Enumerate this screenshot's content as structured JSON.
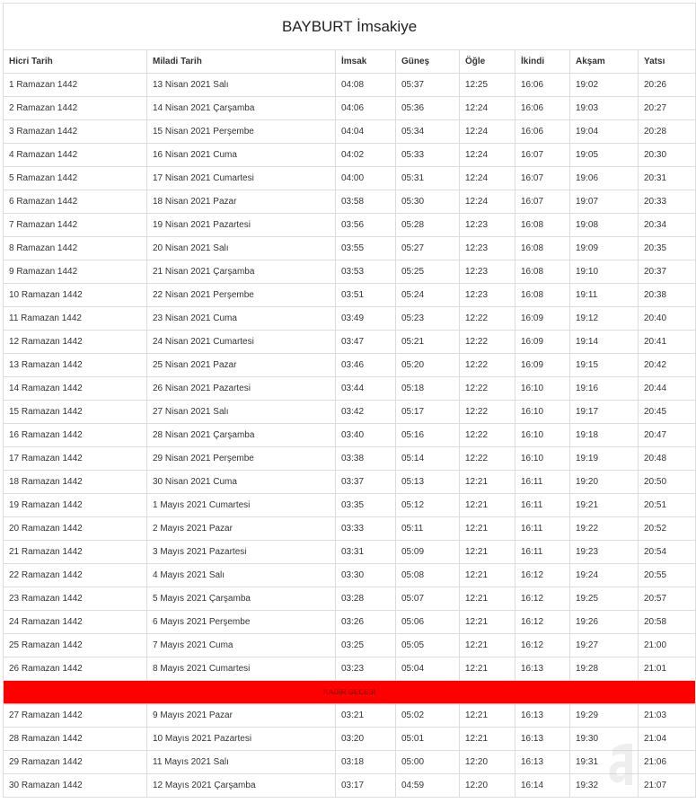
{
  "title": "BAYBURT İmsakiye",
  "headers": [
    "Hicri Tarih",
    "Miladi Tarih",
    "İmsak",
    "Güneş",
    "Öğle",
    "İkindi",
    "Akşam",
    "Yatsı"
  ],
  "rows_before": [
    [
      "1 Ramazan 1442",
      "13 Nisan 2021 Salı",
      "04:08",
      "05:37",
      "12:25",
      "16:06",
      "19:02",
      "20:26"
    ],
    [
      "2 Ramazan 1442",
      "14 Nisan 2021 Çarşamba",
      "04:06",
      "05:36",
      "12:24",
      "16:06",
      "19:03",
      "20:27"
    ],
    [
      "3 Ramazan 1442",
      "15 Nisan 2021 Perşembe",
      "04:04",
      "05:34",
      "12:24",
      "16:06",
      "19:04",
      "20:28"
    ],
    [
      "4 Ramazan 1442",
      "16 Nisan 2021 Cuma",
      "04:02",
      "05:33",
      "12:24",
      "16:07",
      "19:05",
      "20:30"
    ],
    [
      "5 Ramazan 1442",
      "17 Nisan 2021 Cumartesi",
      "04:00",
      "05:31",
      "12:24",
      "16:07",
      "19:06",
      "20:31"
    ],
    [
      "6 Ramazan 1442",
      "18 Nisan 2021 Pazar",
      "03:58",
      "05:30",
      "12:24",
      "16:07",
      "19:07",
      "20:33"
    ],
    [
      "7 Ramazan 1442",
      "19 Nisan 2021 Pazartesi",
      "03:56",
      "05:28",
      "12:23",
      "16:08",
      "19:08",
      "20:34"
    ],
    [
      "8 Ramazan 1442",
      "20 Nisan 2021 Salı",
      "03:55",
      "05:27",
      "12:23",
      "16:08",
      "19:09",
      "20:35"
    ],
    [
      "9 Ramazan 1442",
      "21 Nisan 2021 Çarşamba",
      "03:53",
      "05:25",
      "12:23",
      "16:08",
      "19:10",
      "20:37"
    ],
    [
      "10 Ramazan 1442",
      "22 Nisan 2021 Perşembe",
      "03:51",
      "05:24",
      "12:23",
      "16:08",
      "19:11",
      "20:38"
    ],
    [
      "11 Ramazan 1442",
      "23 Nisan 2021 Cuma",
      "03:49",
      "05:23",
      "12:22",
      "16:09",
      "19:12",
      "20:40"
    ],
    [
      "12 Ramazan 1442",
      "24 Nisan 2021 Cumartesi",
      "03:47",
      "05:21",
      "12:22",
      "16:09",
      "19:14",
      "20:41"
    ],
    [
      "13 Ramazan 1442",
      "25 Nisan 2021 Pazar",
      "03:46",
      "05:20",
      "12:22",
      "16:09",
      "19:15",
      "20:42"
    ],
    [
      "14 Ramazan 1442",
      "26 Nisan 2021 Pazartesi",
      "03:44",
      "05:18",
      "12:22",
      "16:10",
      "19:16",
      "20:44"
    ],
    [
      "15 Ramazan 1442",
      "27 Nisan 2021 Salı",
      "03:42",
      "05:17",
      "12:22",
      "16:10",
      "19:17",
      "20:45"
    ],
    [
      "16 Ramazan 1442",
      "28 Nisan 2021 Çarşamba",
      "03:40",
      "05:16",
      "12:22",
      "16:10",
      "19:18",
      "20:47"
    ],
    [
      "17 Ramazan 1442",
      "29 Nisan 2021 Perşembe",
      "03:38",
      "05:14",
      "12:22",
      "16:10",
      "19:19",
      "20:48"
    ],
    [
      "18 Ramazan 1442",
      "30 Nisan 2021 Cuma",
      "03:37",
      "05:13",
      "12:21",
      "16:11",
      "19:20",
      "20:50"
    ],
    [
      "19 Ramazan 1442",
      "1 Mayıs 2021 Cumartesi",
      "03:35",
      "05:12",
      "12:21",
      "16:11",
      "19:21",
      "20:51"
    ],
    [
      "20 Ramazan 1442",
      "2 Mayıs 2021 Pazar",
      "03:33",
      "05:11",
      "12:21",
      "16:11",
      "19:22",
      "20:52"
    ],
    [
      "21 Ramazan 1442",
      "3 Mayıs 2021 Pazartesi",
      "03:31",
      "05:09",
      "12:21",
      "16:11",
      "19:23",
      "20:54"
    ],
    [
      "22 Ramazan 1442",
      "4 Mayıs 2021 Salı",
      "03:30",
      "05:08",
      "12:21",
      "16:12",
      "19:24",
      "20:55"
    ],
    [
      "23 Ramazan 1442",
      "5 Mayıs 2021 Çarşamba",
      "03:28",
      "05:07",
      "12:21",
      "16:12",
      "19:25",
      "20:57"
    ],
    [
      "24 Ramazan 1442",
      "6 Mayıs 2021 Perşembe",
      "03:26",
      "05:06",
      "12:21",
      "16:12",
      "19:26",
      "20:58"
    ],
    [
      "25 Ramazan 1442",
      "7 Mayıs 2021 Cuma",
      "03:25",
      "05:05",
      "12:21",
      "16:12",
      "19:27",
      "21:00"
    ],
    [
      "26 Ramazan 1442",
      "8 Mayıs 2021 Cumartesi",
      "03:23",
      "05:04",
      "12:21",
      "16:13",
      "19:28",
      "21:01"
    ]
  ],
  "kadir_label": "KADIR GECESİ",
  "kadir_color": "#ff0000",
  "rows_after": [
    [
      "27 Ramazan 1442",
      "9 Mayıs 2021 Pazar",
      "03:21",
      "05:02",
      "12:21",
      "16:13",
      "19:29",
      "21:03"
    ],
    [
      "28 Ramazan 1442",
      "10 Mayıs 2021 Pazartesi",
      "03:20",
      "05:01",
      "12:21",
      "16:13",
      "19:30",
      "21:04"
    ],
    [
      "29 Ramazan 1442",
      "11 Mayıs 2021 Salı",
      "03:18",
      "05:00",
      "12:20",
      "16:13",
      "19:31",
      "21:06"
    ],
    [
      "30 Ramazan 1442",
      "12 Mayıs 2021 Çarşamba",
      "03:17",
      "04:59",
      "12:20",
      "16:14",
      "19:32",
      "21:07"
    ]
  ],
  "watermark": "aHBR.com.tr"
}
